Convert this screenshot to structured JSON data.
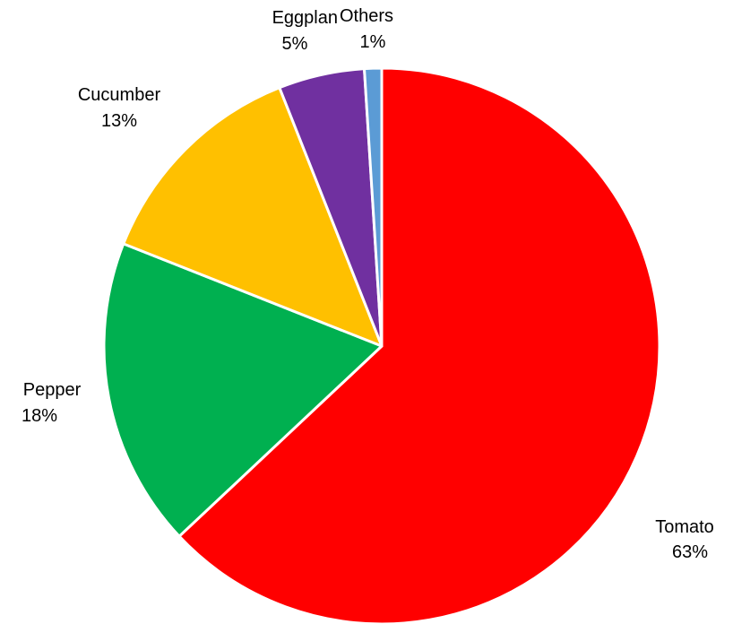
{
  "chart_data": {
    "type": "pie",
    "title": "",
    "start_angle_deg": 0,
    "direction": "clockwise",
    "slices": [
      {
        "name": "Tomato",
        "value": 63,
        "label": "63%",
        "color": "#ff0000"
      },
      {
        "name": "Pepper",
        "value": 18,
        "label": "18%",
        "color": "#00b050"
      },
      {
        "name": "Cucumber",
        "value": 13,
        "label": "13%",
        "color": "#ffc000"
      },
      {
        "name": "Eggplan",
        "value": 5,
        "label": "5%",
        "color": "#7030a0"
      },
      {
        "name": "Others",
        "value": 1,
        "label": "1%",
        "color": "#5b9bd5"
      }
    ]
  }
}
